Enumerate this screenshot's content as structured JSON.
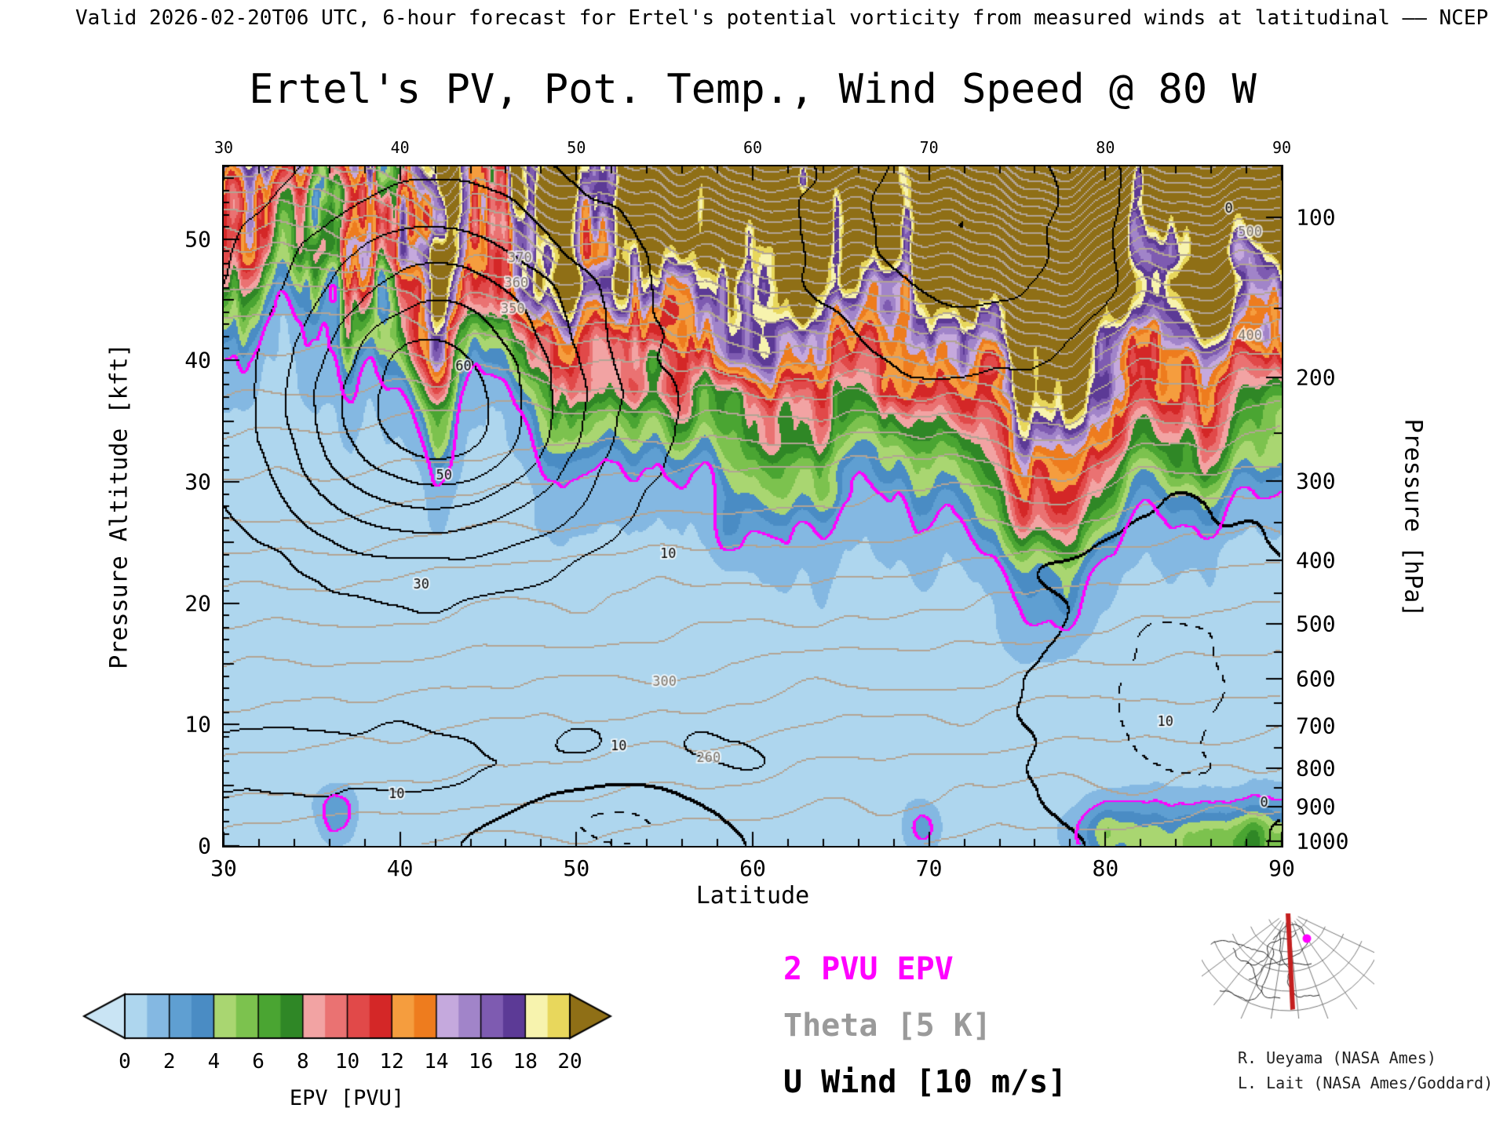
{
  "header": {
    "text": "Valid 2026-02-20T06 UTC, 6-hour forecast for Ertel's potential vorticity from measured winds at latitudinal —— NCEP"
  },
  "title": "Ertel's PV, Pot. Temp., Wind Speed @ 80 W",
  "axes": {
    "x": {
      "label": "Latitude",
      "min": 30,
      "max": 90,
      "ticks": [
        30,
        40,
        50,
        60,
        70,
        80,
        90
      ],
      "minor_step": 2
    },
    "y_left": {
      "label": "Pressure Altitude [kft]",
      "min": 0,
      "max": 56,
      "ticks": [
        0,
        10,
        20,
        30,
        40,
        50
      ]
    },
    "y_right": {
      "label": "Pressure [hPa]",
      "ticks": [
        100,
        200,
        300,
        400,
        500,
        600,
        700,
        800,
        900,
        1000
      ]
    }
  },
  "colorbar": {
    "label": "EPV [PVU]",
    "ticks": [
      0,
      2,
      4,
      6,
      8,
      10,
      12,
      14,
      16,
      18,
      20
    ],
    "band_colors": [
      "#aed6ee",
      "#84b8e2",
      "#5f9fd2",
      "#4a8cc4",
      "#a9d671",
      "#7cc24e",
      "#4aa532",
      "#2f8726",
      "#f2a3a3",
      "#ea7272",
      "#e14949",
      "#d42727",
      "#f59d3e",
      "#ee7c1e",
      "#c5a9dd",
      "#a184c9",
      "#7e5bb1",
      "#5c3a96",
      "#f7f3ae",
      "#e8d75c"
    ],
    "arrow_low_color": "#c9e4f4",
    "arrow_high_color": "#8f6f16"
  },
  "legend": [
    {
      "text": "2 PVU EPV",
      "color": "#ff00ff"
    },
    {
      "text": "Theta [5 K]",
      "color": "#9a9a9a"
    },
    {
      "text": "U Wind [10 m/s]",
      "color": "#000000"
    }
  ],
  "credits": [
    "R. Ueyama (NASA Ames)",
    "L. Lait (NASA Ames/Goddard)"
  ],
  "map_inset": {
    "line_color": "#c41f1f",
    "marker_color": "#ff00ff"
  },
  "chart_data": {
    "type": "heatmap",
    "title": "Ertel's PV, Pot. Temp., Wind Speed @ 80 W",
    "xlabel": "Latitude",
    "ylabel": "Pressure Altitude [kft]",
    "ylabel_right": "Pressure [hPa]",
    "x_range": [
      30,
      90
    ],
    "y_range_kft": [
      0,
      56
    ],
    "fill_variable": "Ertel potential vorticity (EPV) [PVU]",
    "fill_levels_pvu": [
      0,
      2,
      4,
      6,
      8,
      10,
      12,
      14,
      16,
      18,
      20
    ],
    "overlays": [
      {
        "series": "EPV = 2 PVU contour",
        "color": "#ff00ff"
      },
      {
        "series": "Potential temperature (Theta)",
        "contour_interval": "5 K",
        "color": "#9a9a9a"
      },
      {
        "series": "Zonal wind (U)",
        "contour_interval": "10 m/s",
        "color": "#000000",
        "negative_style": "dashed"
      }
    ],
    "tropopause_2pvu_line": {
      "lat": [
        30,
        34,
        38,
        42,
        46,
        50,
        54,
        58,
        62,
        66,
        70,
        74,
        78,
        82,
        86,
        90
      ],
      "alt_kft": [
        40,
        38,
        37,
        31,
        35,
        32,
        30,
        29,
        29,
        27,
        27,
        25,
        18,
        25,
        28,
        29
      ]
    },
    "epv_grid_pvu": {
      "lat": [
        30,
        40,
        50,
        60,
        70,
        80,
        90
      ],
      "alt_kft": [
        0,
        8,
        16,
        24,
        32,
        40,
        48,
        56
      ],
      "values": [
        [
          0.5,
          0.5,
          0.5,
          0.5,
          1.0,
          1.5,
          4.0,
          9.0
        ],
        [
          0.5,
          0.5,
          0.5,
          1.0,
          1.5,
          3.0,
          9.0,
          13.0
        ],
        [
          0.5,
          0.5,
          1.0,
          1.0,
          2.0,
          8.0,
          11.0,
          15.0
        ],
        [
          1.0,
          1.0,
          1.0,
          1.5,
          3.5,
          9.0,
          13.0,
          17.0
        ],
        [
          1.0,
          1.0,
          1.5,
          2.0,
          5.0,
          9.0,
          12.0,
          16.0
        ],
        [
          2.0,
          1.5,
          2.5,
          6.0,
          8.0,
          10.0,
          12.0,
          21.0
        ],
        [
          3.0,
          2.0,
          2.0,
          3.0,
          5.0,
          9.0,
          14.0,
          21.0
        ]
      ]
    },
    "wind_contour_labels": [
      {
        "text": "30",
        "lat": 41.2,
        "alt_kft": 21.5
      },
      {
        "text": "50",
        "lat": 42.5,
        "alt_kft": 30.5
      },
      {
        "text": "60",
        "lat": 43.6,
        "alt_kft": 39.5
      },
      {
        "text": "10",
        "lat": 55.2,
        "alt_kft": 24.0
      },
      {
        "text": "10",
        "lat": 52.4,
        "alt_kft": 8.2
      },
      {
        "text": "10",
        "lat": 39.8,
        "alt_kft": 4.2
      },
      {
        "text": "10",
        "lat": 83.4,
        "alt_kft": 10.2
      },
      {
        "text": "0",
        "lat": 87.0,
        "alt_kft": 52.5
      },
      {
        "text": "0",
        "lat": 89.0,
        "alt_kft": 3.5
      }
    ],
    "theta_contour_labels": [
      {
        "text": "350",
        "lat": 46.4,
        "alt_kft": 44.2
      },
      {
        "text": "360",
        "lat": 46.6,
        "alt_kft": 46.3
      },
      {
        "text": "370",
        "lat": 46.8,
        "alt_kft": 48.4
      },
      {
        "text": "300",
        "lat": 55.0,
        "alt_kft": 13.5
      },
      {
        "text": "260",
        "lat": 57.5,
        "alt_kft": 7.2
      },
      {
        "text": "400",
        "lat": 88.2,
        "alt_kft": 42.0
      },
      {
        "text": "500",
        "lat": 88.2,
        "alt_kft": 50.5
      }
    ]
  }
}
